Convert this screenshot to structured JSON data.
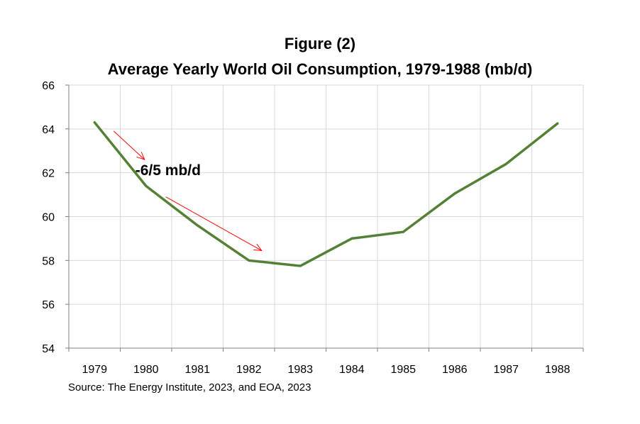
{
  "chart_data": {
    "type": "line",
    "title": "Figure (2)",
    "subtitle": "Average Yearly World Oil Consumption, 1979-1988 (mb/d)",
    "categories": [
      "1979",
      "1980",
      "1981",
      "1982",
      "1983",
      "1984",
      "1985",
      "1986",
      "1987",
      "1988"
    ],
    "series": [
      {
        "values": [
          64.3,
          61.4,
          59.6,
          58.0,
          57.75,
          59.0,
          59.3,
          61.05,
          62.4,
          64.25
        ],
        "color": "#538135"
      }
    ],
    "ylim": [
      54,
      66
    ],
    "yticks": [
      54,
      56,
      58,
      60,
      62,
      64,
      66
    ],
    "grid": true,
    "annotation": {
      "text": "-6/5 mb/d",
      "arrow_color": "#ff0000"
    },
    "source": "Source: The Energy Institute, 2023, and EOA, 2023"
  }
}
